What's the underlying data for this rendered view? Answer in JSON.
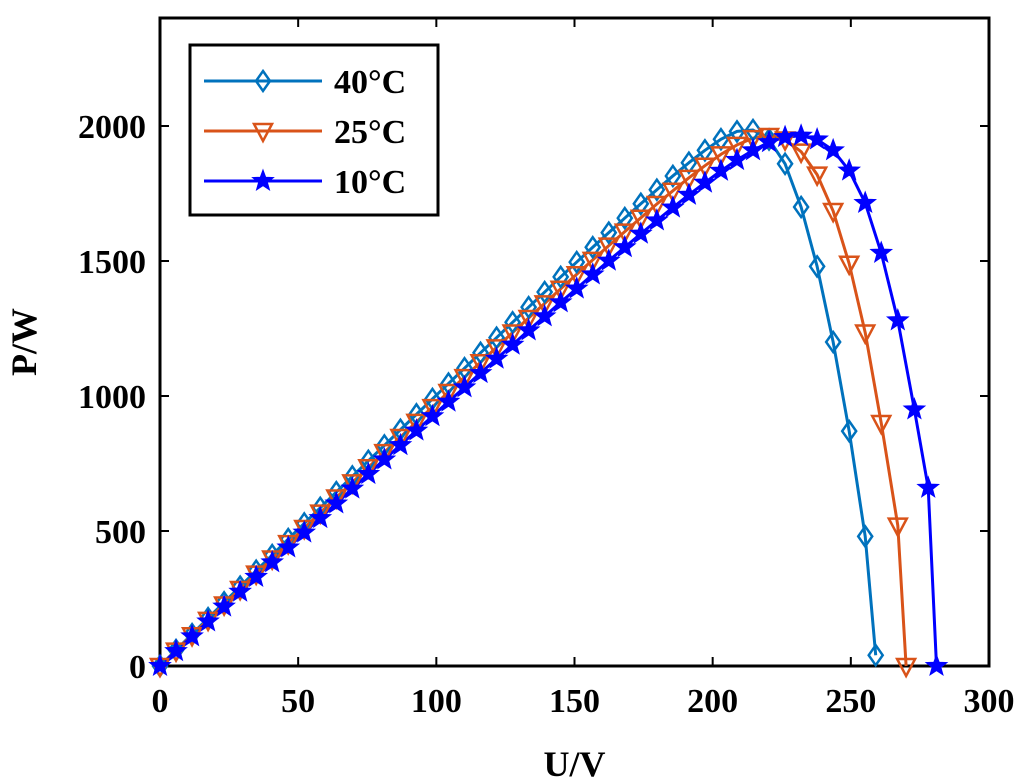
{
  "chart_data": {
    "type": "line",
    "xlabel": "U/V",
    "ylabel": "P/W",
    "xlim": [
      0,
      300
    ],
    "ylim": [
      0,
      2400
    ],
    "xticks": [
      "0",
      "50",
      "100",
      "150",
      "200",
      "250",
      "300"
    ],
    "yticks": [
      "0",
      "500",
      "1000",
      "1500",
      "2000"
    ],
    "grid": false,
    "legend_position": "top-left",
    "series": [
      {
        "name": "40°C",
        "color": "#0072BD",
        "marker": "diamond",
        "x": [
          0,
          5.8,
          11.6,
          17.4,
          23.2,
          29,
          34.8,
          40.6,
          46.4,
          52.2,
          58,
          63.8,
          69.6,
          75.4,
          81.2,
          87,
          92.8,
          98.6,
          104.4,
          110.2,
          116,
          121.8,
          127.6,
          133.4,
          139.2,
          145,
          150.8,
          156.6,
          162.4,
          168.2,
          174,
          179.8,
          185.6,
          191.4,
          197.2,
          203,
          208.8,
          214.6,
          220.4,
          226.2,
          232,
          237.8,
          243.6,
          249.4,
          255.2,
          259
        ],
        "y": [
          0,
          59,
          118,
          177,
          236,
          294,
          353,
          411,
          470,
          528,
          586,
          644,
          702,
          760,
          817,
          875,
          932,
          989,
          1046,
          1103,
          1160,
          1216,
          1273,
          1329,
          1385,
          1441,
          1496,
          1551,
          1605,
          1659,
          1712,
          1764,
          1815,
          1864,
          1910,
          1951,
          1980,
          1985,
          1950,
          1860,
          1700,
          1480,
          1200,
          870,
          480,
          40
        ]
      },
      {
        "name": "25°C",
        "color": "#D95319",
        "marker": "triangle-down",
        "x": [
          0,
          5.8,
          11.6,
          17.4,
          23.2,
          29,
          34.8,
          40.6,
          46.4,
          52.2,
          58,
          63.8,
          69.6,
          75.4,
          81.2,
          87,
          92.8,
          98.6,
          104.4,
          110.2,
          116,
          121.8,
          127.6,
          133.4,
          139.2,
          145,
          150.8,
          156.6,
          162.4,
          168.2,
          174,
          179.8,
          185.6,
          191.4,
          197.2,
          203,
          208.8,
          214.6,
          220.4,
          226.2,
          232,
          237.8,
          243.6,
          249.4,
          255.2,
          261,
          267,
          270
        ],
        "y": [
          0,
          57,
          114,
          171,
          228,
          285,
          342,
          398,
          455,
          511,
          568,
          624,
          680,
          736,
          792,
          848,
          904,
          959,
          1015,
          1070,
          1125,
          1180,
          1235,
          1289,
          1343,
          1397,
          1451,
          1504,
          1557,
          1609,
          1660,
          1711,
          1760,
          1808,
          1853,
          1895,
          1930,
          1955,
          1963,
          1950,
          1905,
          1820,
          1685,
          1490,
          1235,
          900,
          520,
          0
        ]
      },
      {
        "name": "10°C",
        "color": "#0000FF",
        "marker": "star",
        "x": [
          0,
          5.8,
          11.6,
          17.4,
          23.2,
          29,
          34.8,
          40.6,
          46.4,
          52.2,
          58,
          63.8,
          69.6,
          75.4,
          81.2,
          87,
          92.8,
          98.6,
          104.4,
          110.2,
          116,
          121.8,
          127.6,
          133.4,
          139.2,
          145,
          150.8,
          156.6,
          162.4,
          168.2,
          174,
          179.8,
          185.6,
          191.4,
          197.2,
          203,
          208.8,
          214.6,
          220.4,
          226.2,
          232,
          237.8,
          243.6,
          249.4,
          255.2,
          261,
          267,
          273,
          278,
          281
        ],
        "y": [
          0,
          55,
          110,
          165,
          220,
          275,
          330,
          384,
          439,
          494,
          548,
          602,
          657,
          711,
          765,
          818,
          872,
          925,
          979,
          1032,
          1085,
          1138,
          1190,
          1243,
          1295,
          1347,
          1398,
          1450,
          1501,
          1551,
          1601,
          1650,
          1698,
          1745,
          1790,
          1834,
          1874,
          1910,
          1940,
          1959,
          1964,
          1950,
          1910,
          1835,
          1715,
          1530,
          1280,
          950,
          660,
          0
        ]
      }
    ]
  }
}
